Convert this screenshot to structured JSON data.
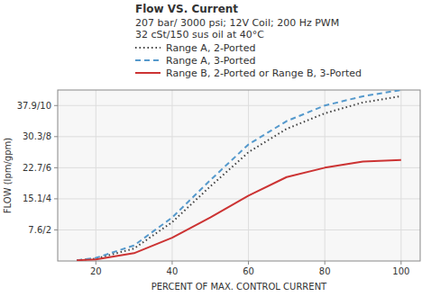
{
  "chart_data": {
    "type": "line",
    "title": "Flow VS. Current",
    "subtitle": [
      "207 bar/ 3000 psi; 12V Coil; 200 Hz PWM",
      "32 cSt/150 sus oil at 40°C"
    ],
    "x_label": "PERCENT OF MAX. CONTROL CURRENT",
    "y_label": "FLOW (lpm/gpm)",
    "x": [
      15,
      20,
      30,
      40,
      50,
      60,
      70,
      80,
      90,
      100
    ],
    "series": [
      {
        "name": "Range A, 2-Ported",
        "color": "#404040",
        "line_style": "dotted",
        "values": [
          0.05,
          0.15,
          0.8,
          2.5,
          4.8,
          7.0,
          8.5,
          9.5,
          10.2,
          10.6
        ]
      },
      {
        "name": "Range A, 3-Ported",
        "color": "#5599cc",
        "line_style": "dashed",
        "values": [
          0.05,
          0.2,
          1.0,
          2.8,
          5.2,
          7.5,
          9.0,
          10.0,
          10.6,
          11.0
        ]
      },
      {
        "name": "Range B, 2-Ported or Range B, 3-Ported",
        "color": "#cc3333",
        "line_style": "solid",
        "values": [
          0.05,
          0.1,
          0.5,
          1.5,
          2.8,
          4.2,
          5.4,
          6.0,
          6.4,
          6.5
        ]
      }
    ],
    "xlim": [
      10,
      105
    ],
    "ylim": [
      0,
      11
    ],
    "xticks": [
      20,
      40,
      60,
      80,
      100
    ],
    "yticks": [
      {
        "value": 2,
        "label": "7.6/2"
      },
      {
        "value": 4,
        "label": "15.1/4"
      },
      {
        "value": 6,
        "label": "22.7/6"
      },
      {
        "value": 8,
        "label": "30.3/8"
      },
      {
        "value": 10,
        "label": "37.9/10"
      }
    ],
    "grid": true,
    "legend": "top-right"
  }
}
